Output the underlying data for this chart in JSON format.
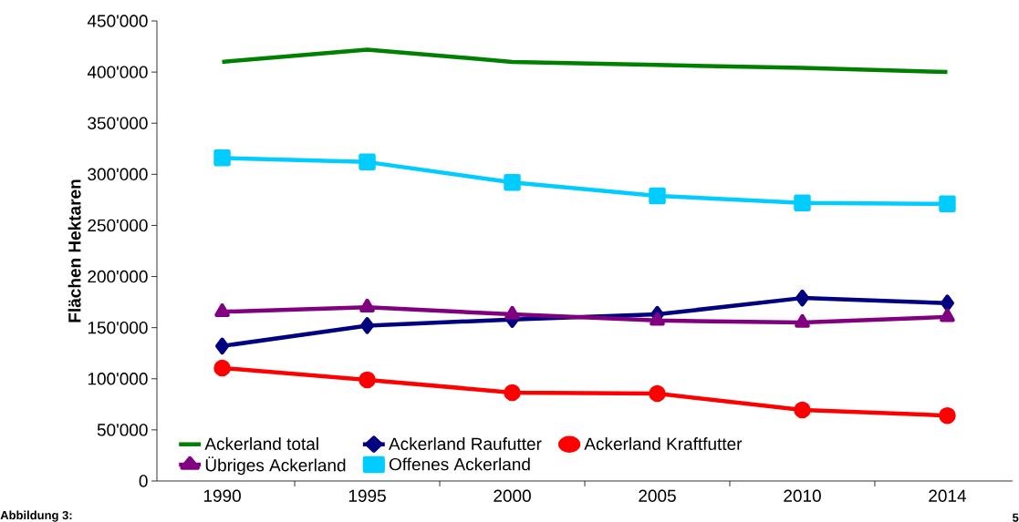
{
  "chart_data": {
    "type": "line",
    "ylabel": "Flächen Hektaren",
    "categories": [
      "1990",
      "1995",
      "2000",
      "2005",
      "2010",
      "2014"
    ],
    "series": [
      {
        "name": "Ackerland total",
        "color": "#008000",
        "marker": "none",
        "values": [
          410000,
          422000,
          410000,
          407000,
          404000,
          400000
        ]
      },
      {
        "name": "Ackerland Raufutter",
        "color": "#000080",
        "marker": "diamond",
        "values": [
          132000,
          152000,
          158000,
          163000,
          179000,
          174000
        ]
      },
      {
        "name": "Ackerland Kraftfutter",
        "color": "#ff0000",
        "marker": "circle",
        "values": [
          110500,
          99000,
          86500,
          85500,
          69500,
          64000
        ]
      },
      {
        "name": "Übriges Ackerland",
        "color": "#800080",
        "marker": "triangle",
        "values": [
          165500,
          170000,
          163000,
          157000,
          155000,
          160500
        ]
      },
      {
        "name": "Offenes Ackerland",
        "color": "#00ccff",
        "marker": "square",
        "values": [
          316000,
          312000,
          292000,
          279000,
          272000,
          271000
        ]
      }
    ],
    "ylim": [
      0,
      450000
    ],
    "yticks": [
      0,
      {
        "value": 50000,
        "label": "50'000"
      },
      {
        "value": 100000,
        "label": "100'000"
      },
      {
        "value": 150000,
        "label": "150'000"
      },
      {
        "value": 200000,
        "label": "200'000"
      },
      {
        "value": 250000,
        "label": "250'000"
      },
      {
        "value": 300000,
        "label": "300'000"
      },
      {
        "value": 350000,
        "label": "350'000"
      },
      {
        "value": 400000,
        "label": "400'000"
      },
      {
        "value": 450000,
        "label": "450'000"
      }
    ],
    "legend": "bottom",
    "annotations": [
      "Abbildung 3:",
      "5"
    ]
  }
}
